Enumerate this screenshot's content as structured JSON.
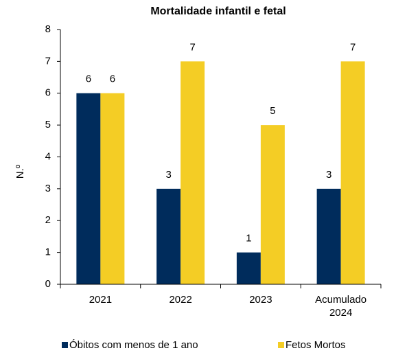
{
  "chart_data": {
    "type": "bar",
    "title": "Mortalidade infantil e fetal",
    "y_label": "N.º",
    "categories": [
      "2021",
      "2022",
      "2023",
      "Acumulado 2024"
    ],
    "series": [
      {
        "name": "Óbitos com menos de 1 ano",
        "color": "#002c5c",
        "values": [
          6,
          3,
          1,
          3
        ]
      },
      {
        "name": "Fetos Mortos",
        "color": "#f4cd25",
        "values": [
          6,
          7,
          5,
          7
        ]
      }
    ],
    "ylim": [
      0,
      8
    ],
    "yticks": [
      0,
      1,
      2,
      3,
      4,
      5,
      6,
      7,
      8
    ],
    "grid": false,
    "legend": "bottom"
  }
}
